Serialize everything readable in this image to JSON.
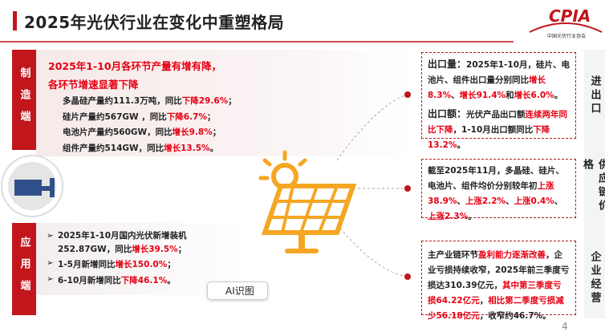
{
  "header": {
    "title": "2025年光伏行业在变化中重塑格局",
    "logo": "CPIA",
    "logo_subtitle": "中国光伏行业协会"
  },
  "left": {
    "manufacturing_label": "制造端",
    "application_label": "应用端"
  },
  "manufacturing": {
    "heading": [
      "2025年1-10月各环节产量有增有降，",
      "各环节增速显著下降"
    ],
    "items": [
      [
        "多晶硅产量约111.3万吨，同比",
        {
          "text": "下降29.6%",
          "color": "#e60012"
        },
        "；"
      ],
      [
        "硅片产量约567GW ，同比",
        {
          "text": "下降6.7%",
          "color": "#e60012"
        },
        "；"
      ],
      [
        "电池片产量约560GW，同比",
        {
          "text": "增长9.8%",
          "color": "#e60012"
        },
        "；"
      ],
      [
        "组件产量约514GW，同比",
        {
          "text": "增长13.5%",
          "color": "#e60012"
        },
        "。"
      ]
    ]
  },
  "application": {
    "items": [
      [
        "2025年1-10月国内光伏新增装机252.87GW，同比",
        {
          "text": "增长39.5%",
          "color": "#e60012"
        },
        "；"
      ],
      [
        "1-5月新增同比",
        {
          "text": "增长150.0%",
          "color": "#e60012"
        },
        "；"
      ],
      [
        "6-10月新增同比",
        {
          "text": "下降46.1%",
          "color": "#e60012"
        },
        "。"
      ]
    ]
  },
  "right": [
    {
      "label": "进出口",
      "paragraphs": [
        [
          {
            "text": "出口量：",
            "bold": true
          },
          "2025年1-10月，硅片、电池片、组件出口量分别同比",
          {
            "text": "增长8.3%",
            "color": "#e60012"
          },
          "、",
          {
            "text": "增长91.4%",
            "color": "#e60012"
          },
          "和",
          {
            "text": "增长6.0%",
            "color": "#e60012"
          },
          "。"
        ],
        [
          {
            "text": "出口额：",
            "bold": true
          },
          "光伏产品出口额",
          {
            "text": "连续两年同比下降",
            "color": "#e60012"
          },
          "，1-10月出口额同比",
          {
            "text": "下降13.2%",
            "color": "#e60012"
          },
          "。"
        ]
      ]
    },
    {
      "label": "供应链价格",
      "paragraphs": [
        [
          "截至2025年11月，多晶硅、硅片、电池片、组件均价分别较年初",
          {
            "text": "上涨38.9%",
            "color": "#e60012"
          },
          "、",
          {
            "text": "上涨2.2%",
            "color": "#e60012"
          },
          "、",
          {
            "text": "上涨0.4%",
            "color": "#e60012"
          },
          "、",
          {
            "text": "上涨2.3%",
            "color": "#e60012"
          },
          "。"
        ]
      ]
    },
    {
      "label": "企业经营",
      "paragraphs": [
        [
          "主产业链环节",
          {
            "text": "盈利能力逐渐改善",
            "color": "#e60012"
          },
          "，企业亏损持续收窄，2025年前三季度亏损达310.39亿元，",
          {
            "text": "其中第三季度亏损64.22亿元",
            "color": "#e60012"
          },
          "，",
          {
            "text": "相比第二季度亏损减少56.18亿元",
            "color": "#e60012"
          },
          "，收窄约46.7%。"
        ]
      ]
    }
  ],
  "ai_button": "AI识图",
  "page_number": "4"
}
